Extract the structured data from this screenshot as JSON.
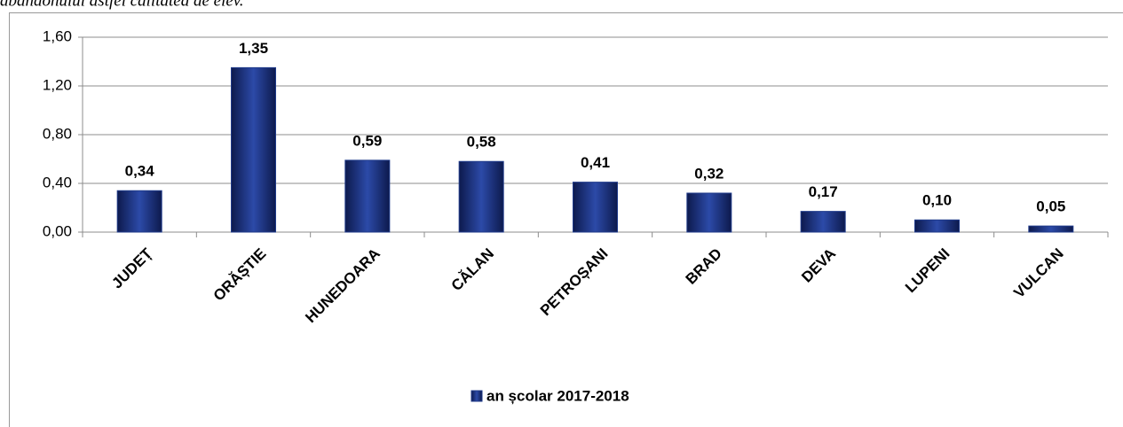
{
  "note": "abandonului astfel calitatea de elev.",
  "chart_data": {
    "type": "bar",
    "categories": [
      "JUDEȚ",
      "ORĂȘTIE",
      "HUNEDOARA",
      "CĂLAN",
      "PETROȘANI",
      "BRAD",
      "DEVA",
      "LUPENI",
      "VULCAN"
    ],
    "series": [
      {
        "name": "an școlar 2017-2018",
        "color": "#1f3a8a",
        "values": [
          0.34,
          1.35,
          0.59,
          0.58,
          0.41,
          0.32,
          0.17,
          0.1,
          0.05
        ],
        "value_labels": [
          "0,34",
          "1,35",
          "0,59",
          "0,58",
          "0,41",
          "0,32",
          "0,17",
          "0,10",
          "0,05"
        ]
      }
    ],
    "ylim": [
      0,
      1.6
    ],
    "yticks": [
      {
        "value": 0,
        "label": "0,00"
      },
      {
        "value": 0.4,
        "label": "0,40"
      },
      {
        "value": 0.8,
        "label": "0,80"
      },
      {
        "value": 1.2,
        "label": "1,20"
      },
      {
        "value": 1.6,
        "label": "1,60"
      }
    ],
    "grid": true,
    "legend": "bottom"
  }
}
